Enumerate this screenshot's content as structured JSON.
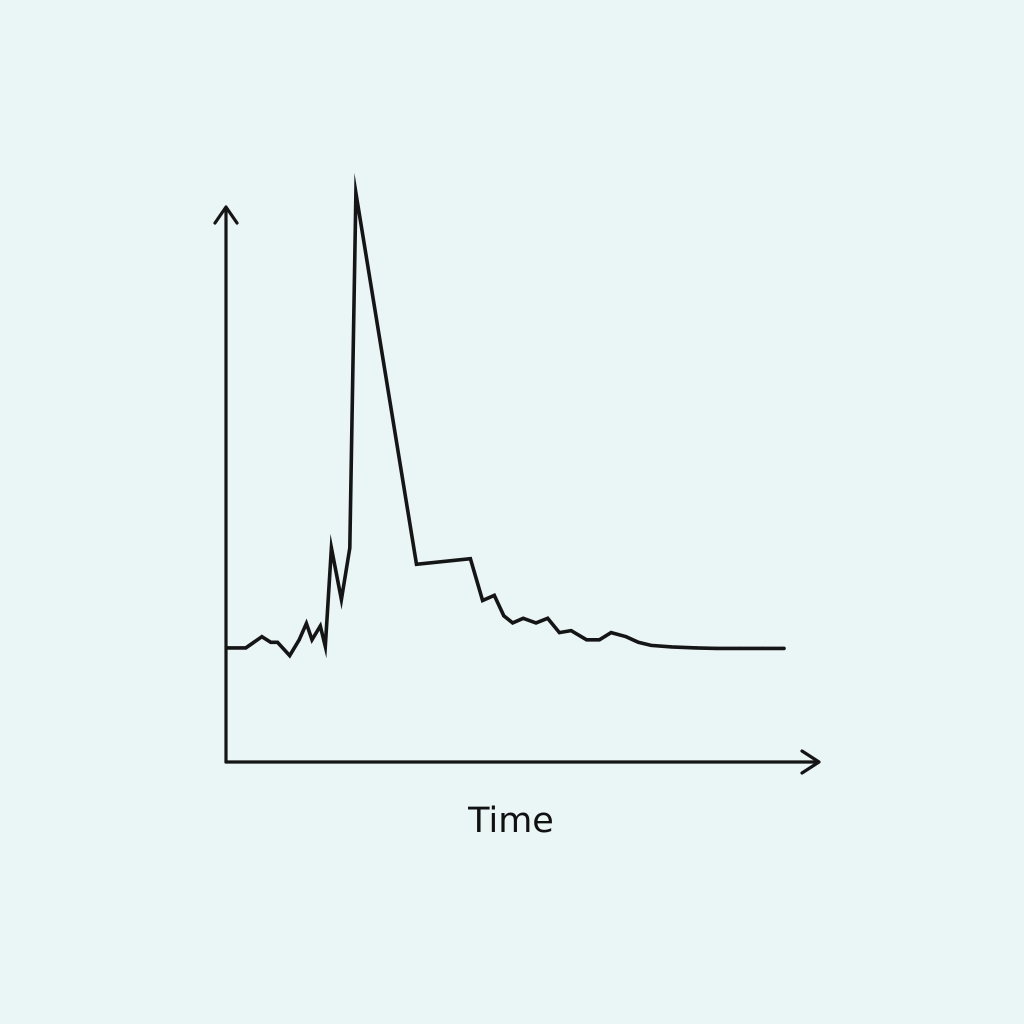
{
  "chart_data": {
    "type": "line",
    "xlabel": "Time",
    "ylabel": "",
    "grid": false,
    "ylim": [
      0,
      100
    ],
    "xlim": [
      0,
      100
    ],
    "series": [
      {
        "x": [
          0,
          3.2,
          6.1,
          7.7,
          8.9,
          11.1,
          12.8,
          14.1,
          15.1,
          16.6,
          17.5,
          18.6,
          20.4,
          21.9,
          23.0,
          33.9,
          43.6,
          45.8,
          47.9,
          49.6,
          51.2,
          53.1,
          55.4,
          57.5,
          59.6,
          61.7,
          64.5,
          66.8,
          68.9,
          71.6,
          73.8,
          76.1,
          79.8,
          84.2,
          87.9,
          91.9,
          96.2,
          100
        ],
        "y": [
          10.8,
          10.8,
          13.0,
          11.9,
          11.9,
          9.3,
          12.4,
          15.6,
          12.4,
          15.1,
          11.1,
          30.4,
          20.3,
          30.4,
          100,
          27.2,
          28.3,
          20.1,
          21.1,
          17.1,
          15.7,
          16.6,
          15.7,
          16.6,
          13.8,
          14.2,
          12.4,
          12.4,
          13.8,
          13.0,
          11.9,
          11.3,
          11.0,
          10.8,
          10.7,
          10.7,
          10.7,
          10.7
        ]
      }
    ],
    "colors": {
      "background": "#eaf5f6",
      "line": "#151515"
    }
  }
}
